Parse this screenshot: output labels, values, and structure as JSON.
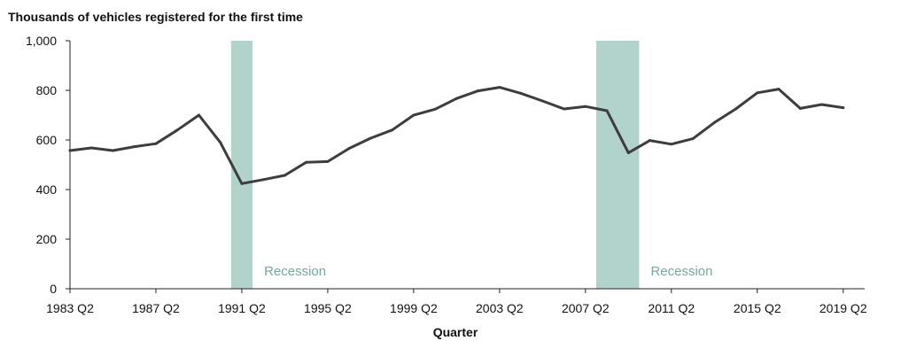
{
  "chart_data": {
    "type": "line",
    "title": "Thousands of vehicles registered for the first time",
    "xlabel": "Quarter",
    "ylabel": "",
    "ylim": [
      0,
      1000
    ],
    "yticks": [
      0,
      200,
      400,
      600,
      800,
      1000
    ],
    "ytick_labels": [
      "0",
      "200",
      "400",
      "600",
      "800",
      "1,000"
    ],
    "xlim": [
      1983.25,
      2020.25
    ],
    "xticks": [
      1983.25,
      1987.25,
      1991.25,
      1995.25,
      1999.25,
      2003.25,
      2007.25,
      2011.25,
      2015.25,
      2019.25
    ],
    "xtick_labels": [
      "1983 Q2",
      "1987 Q2",
      "1991 Q2",
      "1995 Q2",
      "1999 Q2",
      "2003 Q2",
      "2007 Q2",
      "2011 Q2",
      "2015 Q2",
      "2019 Q2"
    ],
    "grid": false,
    "line_color": "#3d3d3d",
    "series": [
      {
        "x": [
          1983.25,
          1984.25,
          1985.25,
          1986.25,
          1987.25,
          1988.25,
          1989.25,
          1990.25,
          1991.25,
          1992.25,
          1993.25,
          1994.25,
          1995.25,
          1996.25,
          1997.25,
          1998.25,
          1999.25,
          2000.25,
          2001.25,
          2002.25,
          2003.25,
          2004.25,
          2005.25,
          2006.25,
          2007.25,
          2008.25,
          2009.25,
          2010.25,
          2011.25,
          2012.25,
          2013.25,
          2014.25,
          2015.25,
          2016.25,
          2017.25,
          2018.25,
          2019.25
        ],
        "values": [
          557,
          568,
          557,
          573,
          585,
          640,
          700,
          590,
          424,
          440,
          457,
          510,
          513,
          566,
          607,
          640,
          700,
          724,
          767,
          798,
          812,
          788,
          757,
          725,
          735,
          718,
          548,
          598,
          583,
          605,
          670,
          725,
          790,
          805,
          727,
          743,
          730
        ]
      }
    ],
    "shaded_regions": [
      {
        "start": 1990.75,
        "end": 1991.75,
        "label": "Recession"
      },
      {
        "start": 2007.75,
        "end": 2009.75,
        "label": "Recession"
      }
    ],
    "shade_color": "#b2d3cc",
    "shade_label_color": "#76a99d"
  }
}
